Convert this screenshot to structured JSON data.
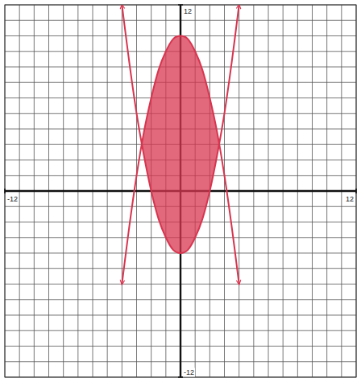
{
  "chart_data": {
    "type": "line",
    "x": [
      -4,
      -3.5,
      -3,
      -2.5,
      -2,
      -1.5,
      -1,
      -0.5,
      0,
      0.5,
      1,
      1.5,
      2,
      2.5,
      3,
      3.5,
      4
    ],
    "series": [
      {
        "color": "#d8354f",
        "values": [
          12,
          8.3,
          5,
          2.3,
          0,
          -1.8,
          -3,
          -3.8,
          -4,
          -3.8,
          -3,
          -1.8,
          0,
          2.3,
          5,
          8.3,
          12
        ]
      },
      {
        "color": "#d8354f",
        "values": [
          -6,
          -2.3,
          1,
          3.8,
          6,
          7.8,
          9,
          9.8,
          10,
          9.8,
          9,
          7.8,
          6,
          3.8,
          1,
          -2.3,
          -6
        ]
      }
    ],
    "xlim": [
      -12,
      12
    ],
    "ylim": [
      -12,
      12
    ],
    "xticks": [
      -12,
      12
    ],
    "yticks": [
      -12,
      12
    ],
    "grid": true
  }
}
